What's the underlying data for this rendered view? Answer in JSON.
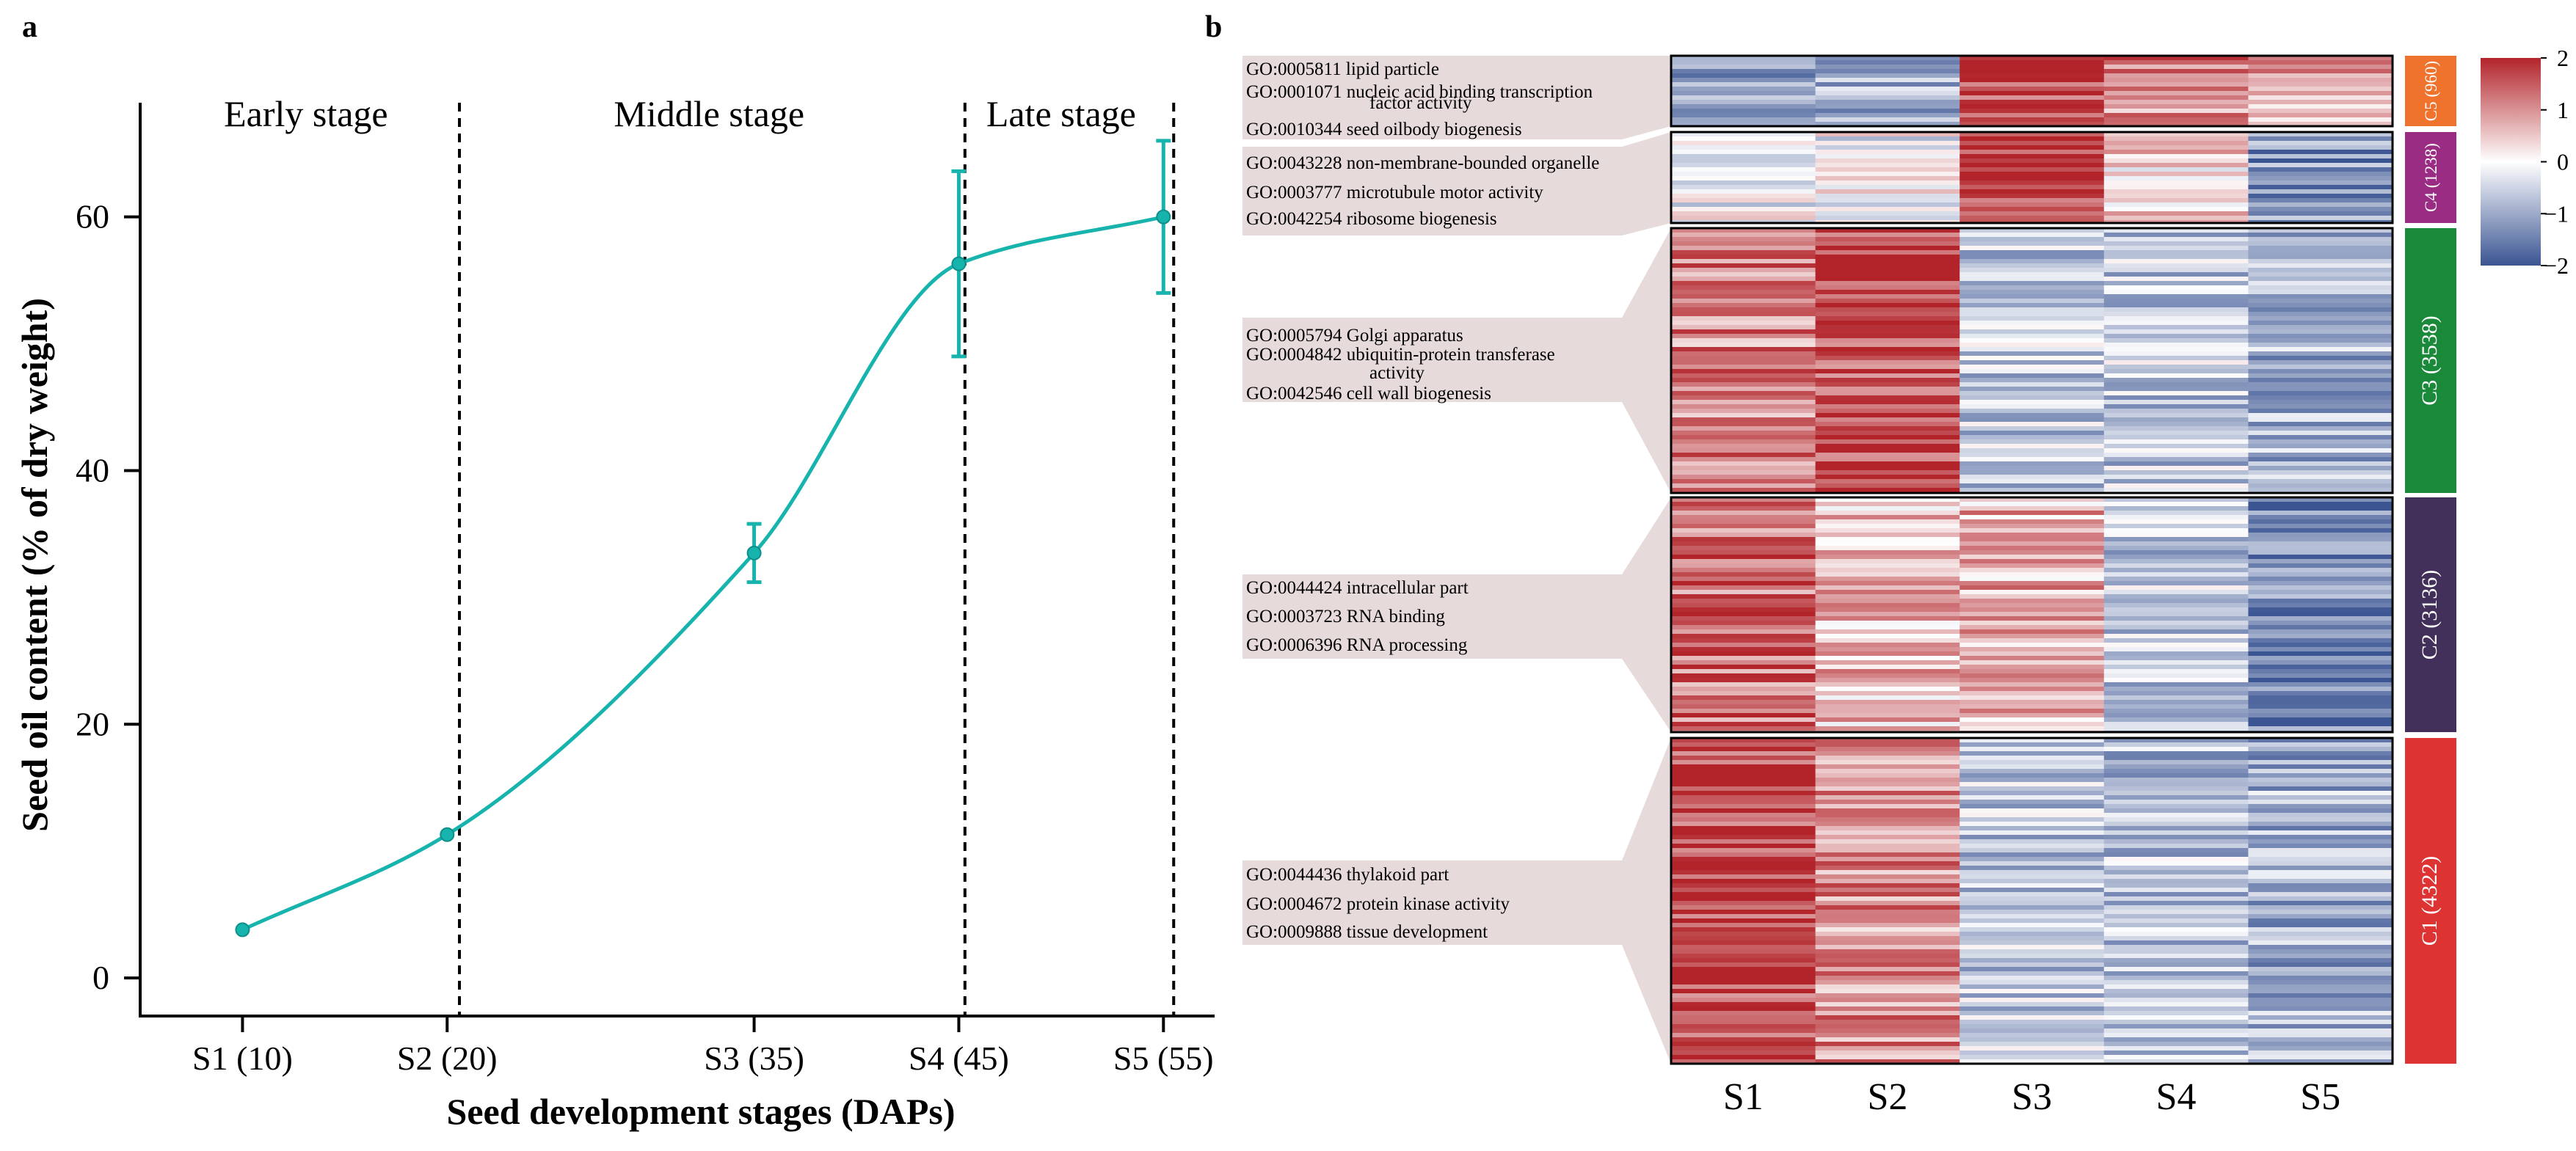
{
  "chart_data": [
    {
      "panel": "a",
      "type": "line",
      "xlabel": "Seed development stages (DAPs)",
      "ylabel": "Seed oil content (% of dry weight)",
      "x": [
        10,
        20,
        35,
        45,
        55
      ],
      "x_tick_labels": [
        "S1 (10)",
        "S2 (20)",
        "S3 (35)",
        "S4 (45)",
        "S5 (55)"
      ],
      "xlim": [
        5,
        57.5
      ],
      "ylim": [
        -3,
        69
      ],
      "yticks": [
        0,
        20,
        40,
        60
      ],
      "series": [
        {
          "values": [
            3.8,
            11.3,
            33.5,
            56.3,
            60.0
          ],
          "errors": [
            0,
            0,
            2.3,
            7.3,
            6.0
          ],
          "color": "#17b3ad"
        }
      ],
      "stage_dividers": [
        20.6,
        45.3,
        55.5
      ],
      "stages": [
        {
          "label": "Early stage",
          "center_x": 13.1
        },
        {
          "label": "Middle stage",
          "center_x": 32.8
        },
        {
          "label": "Late stage",
          "center_x": 50.0
        }
      ],
      "grid": false,
      "legend": "none"
    },
    {
      "panel": "b",
      "type": "heatmap",
      "columns": [
        "S1",
        "S2",
        "S3",
        "S4",
        "S5"
      ],
      "colorbar": {
        "ticks": [
          2,
          1,
          0,
          -1,
          -2
        ],
        "tick_labels": [
          "2",
          "1",
          "0",
          "−1",
          "−2"
        ],
        "low_color": "#3b5593",
        "mid_color": "#ffffff",
        "high_color": "#b2242a"
      },
      "clusters": [
        {
          "label": "C5 (960)",
          "color": "#f0732d",
          "means": [
            -1.1,
            -1.0,
            1.6,
            1.1,
            0.9
          ],
          "go_terms": [
            "GO:0005811 lipid particle",
            "GO:0001071 nucleic acid binding transcription",
            "factor activity",
            "GO:0010344 seed oilbody biogenesis"
          ]
        },
        {
          "label": "C4 (1238)",
          "color": "#9b2c83",
          "means": [
            -0.2,
            -0.1,
            1.9,
            0.4,
            -1.3
          ],
          "go_terms": [
            "GO:0043228 non-membrane-bounded organelle",
            "GO:0003777 microtubule motor activity",
            "GO:0042254 ribosome biogenesis"
          ]
        },
        {
          "label": "C3 (3538)",
          "color": "#1a8a3a",
          "means": [
            1.1,
            1.6,
            -0.6,
            -0.6,
            -0.9
          ],
          "go_terms": [
            "GO:0005794 Golgi apparatus",
            "GO:0004842 ubiquitin-protein transferase",
            "activity",
            "GO:0042546 cell wall biogenesis"
          ]
        },
        {
          "label": "C2 (3136)",
          "color": "#43305a",
          "means": [
            1.3,
            0.6,
            0.7,
            -0.6,
            -1.4
          ],
          "go_terms": [
            "GO:0044424 intracellular part",
            "GO:0003723 RNA binding",
            "GO:0006396 RNA processing"
          ]
        },
        {
          "label": "C1 (4322)",
          "color": "#dd3433",
          "means": [
            1.7,
            1.0,
            -0.6,
            -0.7,
            -0.9
          ],
          "go_terms": [
            "GO:0044436 thylakoid part",
            "GO:0004672 protein kinase activity",
            "GO:0009888 tissue development"
          ]
        }
      ]
    }
  ],
  "panel_labels": {
    "a": "a",
    "b": "b"
  }
}
